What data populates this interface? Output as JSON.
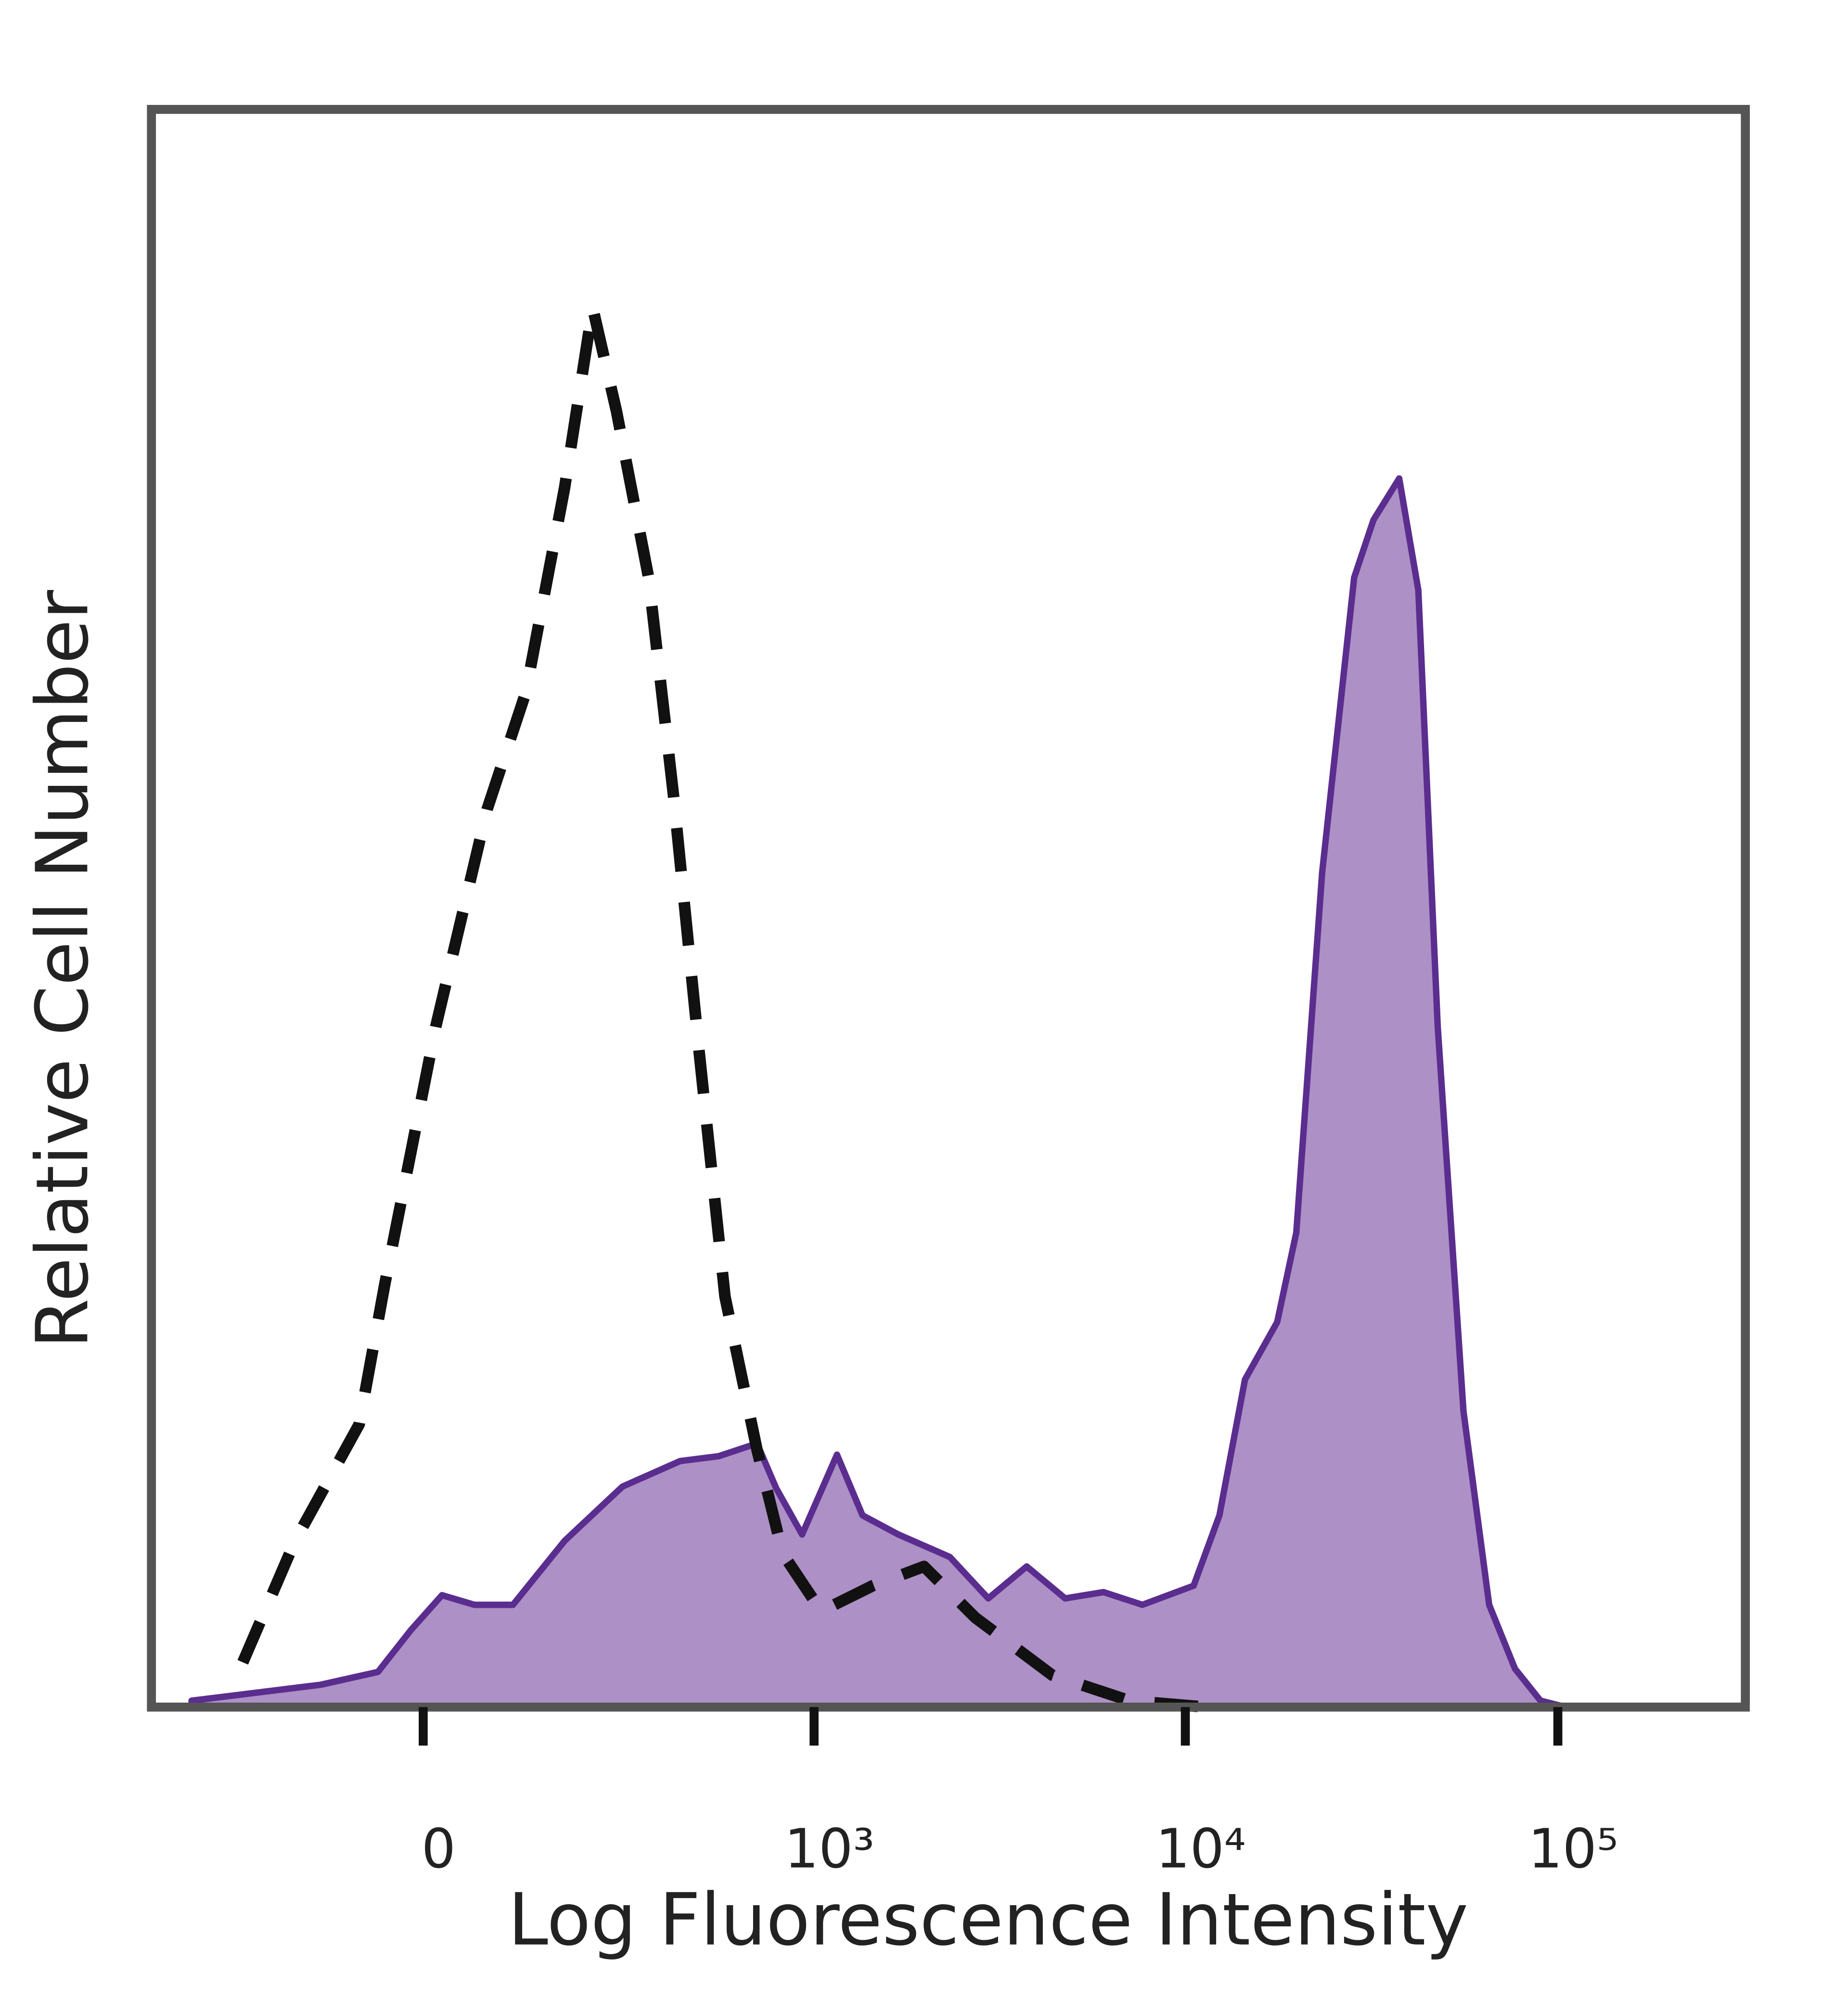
{
  "chart_data": {
    "type": "histogram-overlay",
    "xlabel": "Log Fluorescence Intensity",
    "ylabel": "Relative Cell Number",
    "xscale": "asinh",
    "linthresh": 180,
    "xlim": [
      -466,
      318600
    ],
    "ylim": [
      0,
      100
    ],
    "xticks": [
      0,
      {
        "value": 1000,
        "label": "10³"
      },
      {
        "value": 10000,
        "label": "10⁴"
      },
      {
        "value": 100000,
        "label": "10⁵"
      }
    ],
    "series": [
      {
        "color": "#5a2d8f",
        "fill": "#ad90c6",
        "dashed": false,
        "x": [
          -355,
          -122,
          -51,
          -14,
          21,
          58,
          105,
          178,
          282,
          422,
          544,
          697,
          787,
          927,
          1154,
          1354,
          1692,
          2329,
          2956,
          3750,
          4757,
          6030,
          7668,
          10530,
          12350,
          14460,
          17640,
          19860,
          23290,
          28400,
          31990,
          37500,
          42230,
          47580,
          55800,
          65430,
          76700,
          89800,
          105100
        ],
        "values": [
          0.4,
          1.4,
          2.2,
          4.8,
          7.0,
          6.4,
          6.4,
          10.4,
          13.8,
          15.4,
          15.7,
          16.5,
          13.7,
          10.8,
          15.8,
          12.0,
          10.8,
          9.4,
          6.8,
          8.8,
          6.8,
          7.2,
          6.4,
          7.6,
          12.0,
          20.5,
          24.1,
          29.7,
          52.2,
          70.7,
          74.3,
          76.9,
          69.9,
          42.6,
          18.5,
          6.4,
          2.4,
          0.4,
          0
        ]
      },
      {
        "color": "#111111",
        "fill": null,
        "dashed": true,
        "x": [
          -245,
          -158,
          -73,
          -43,
          14,
          73,
          122,
          178,
          225,
          270,
          340,
          404,
          479,
          567,
          697,
          821,
          1046,
          1444,
          1985,
          2729,
          4392,
          7074,
          11390
        ],
        "values": [
          2.8,
          10.4,
          17.7,
          26.5,
          42.6,
          56.2,
          63.5,
          76.3,
          87.6,
          81.1,
          70.7,
          57.0,
          41.0,
          25.7,
          16.1,
          9.6,
          6.0,
          7.6,
          8.8,
          5.6,
          2.0,
          0.4,
          0
        ]
      }
    ]
  }
}
